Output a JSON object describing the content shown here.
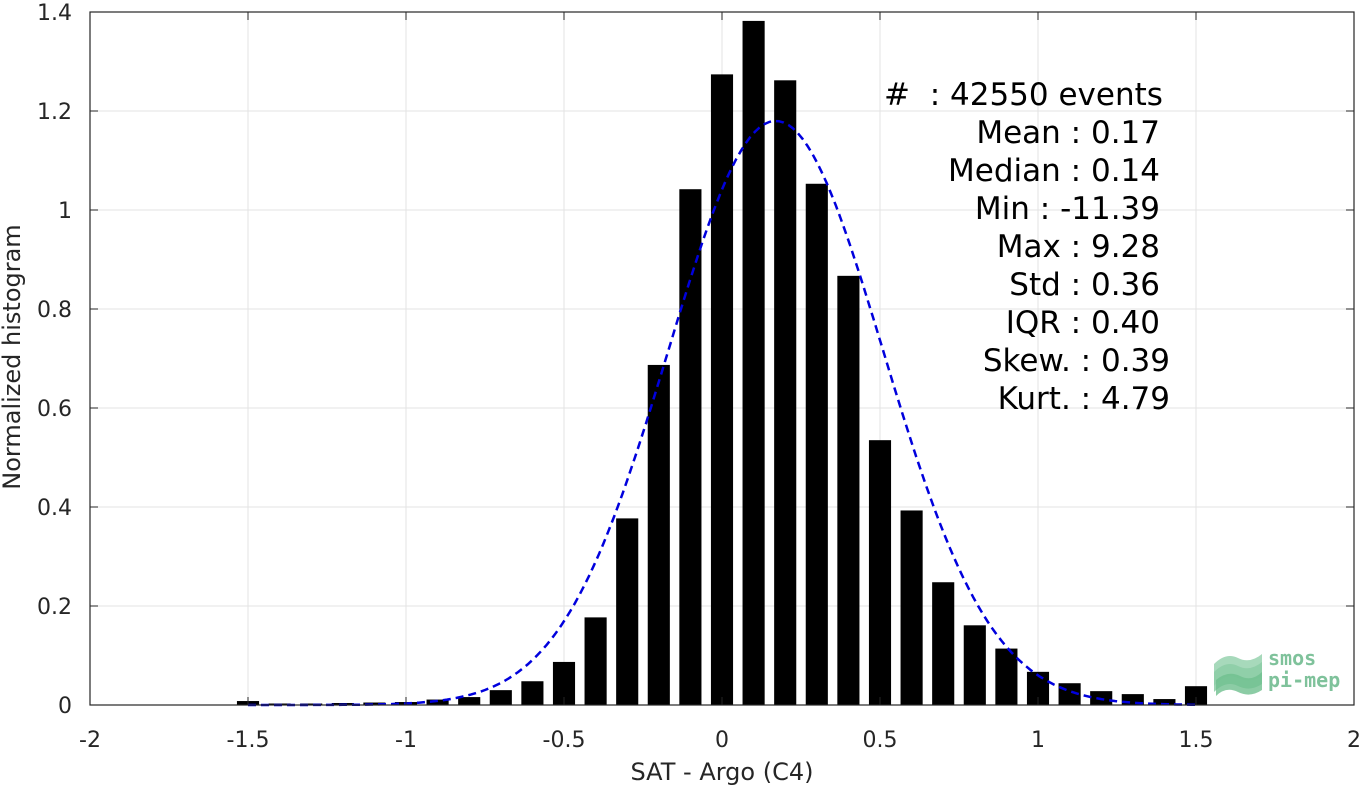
{
  "chart_data": {
    "type": "bar",
    "title": "",
    "xlabel": "SAT - Argo (C4)",
    "ylabel": "Normalized histogram",
    "xlim": [
      -2,
      2
    ],
    "ylim": [
      0,
      1.4
    ],
    "xticks": [
      "-2",
      "-1.5",
      "-1",
      "-0.5",
      "0",
      "0.5",
      "1",
      "1.5",
      "2"
    ],
    "yticks": [
      "0",
      "0.2",
      "0.4",
      "0.6",
      "0.8",
      "1",
      "1.2",
      "1.4"
    ],
    "grid": true,
    "bar_color": "#000000",
    "x": [
      -1.5,
      -1.4,
      -1.3,
      -1.2,
      -1.1,
      -1.0,
      -0.9,
      -0.8,
      -0.7,
      -0.6,
      -0.5,
      -0.4,
      -0.3,
      -0.2,
      -0.1,
      0.0,
      0.1,
      0.2,
      0.3,
      0.4,
      0.5,
      0.6,
      0.7,
      0.8,
      0.9,
      1.0,
      1.1,
      1.2,
      1.3,
      1.4,
      1.5
    ],
    "values": [
      0.008,
      0.003,
      0.003,
      0.004,
      0.005,
      0.006,
      0.011,
      0.016,
      0.03,
      0.048,
      0.087,
      0.177,
      0.377,
      0.687,
      1.042,
      1.274,
      1.382,
      1.262,
      1.053,
      0.867,
      0.535,
      0.393,
      0.248,
      0.161,
      0.114,
      0.067,
      0.044,
      0.028,
      0.022,
      0.012,
      0.038
    ],
    "fit_curve": {
      "type": "normal",
      "mean": 0.17,
      "std": 0.34,
      "peak": 1.18,
      "color": "#0000dd",
      "style": "dashed",
      "x_range": [
        -1.5,
        1.5
      ]
    }
  },
  "stats": [
    {
      "label": "#",
      "sep": "  : ",
      "value": "42550 events"
    },
    {
      "label": "Mean",
      "sep": " : ",
      "value": "0.17"
    },
    {
      "label": "Median",
      "sep": " : ",
      "value": "0.14"
    },
    {
      "label": "Min",
      "sep": " : ",
      "value": "-11.39"
    },
    {
      "label": "Max",
      "sep": " : ",
      "value": "9.28"
    },
    {
      "label": "Std",
      "sep": " : ",
      "value": "0.36"
    },
    {
      "label": "IQR",
      "sep": " : ",
      "value": "0.40"
    },
    {
      "label": "Skew.",
      "sep": " : ",
      "value": "0.39"
    },
    {
      "label": "Kurt.",
      "sep": " : ",
      "value": "4.79"
    }
  ],
  "logo": {
    "line1": "smos",
    "line2": "pi-mep"
  }
}
